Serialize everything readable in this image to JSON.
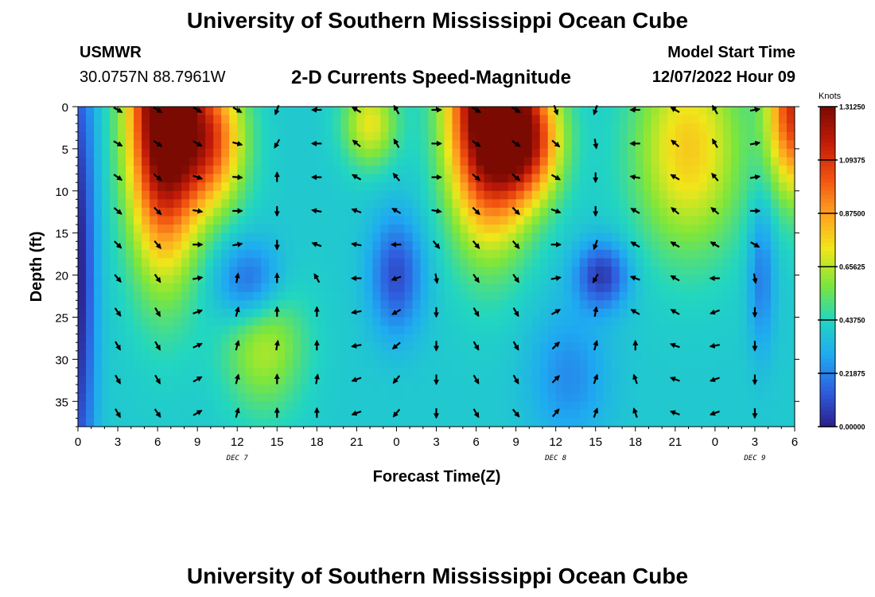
{
  "page": {
    "main_title": "University of Southern Mississippi Ocean Cube",
    "station_id": "USMWR",
    "coordinates": "30.0757N  88.7961W",
    "chart_subtitle": "2-D Currents Speed-Magnitude",
    "model_start_label": "Model Start Time",
    "model_start_value": "12/07/2022 Hour 09",
    "second_panel_title": "University of Southern Mississippi Ocean Cube"
  },
  "chart_data": {
    "type": "heatmap",
    "title": "2-D Currents Speed-Magnitude",
    "xlabel": "Forecast Time(Z)",
    "ylabel": "Depth (ft)",
    "x_range_hours": [
      0,
      54
    ],
    "x_ticks": [
      {
        "h": 0,
        "label": "0"
      },
      {
        "h": 3,
        "label": "3"
      },
      {
        "h": 6,
        "label": "6"
      },
      {
        "h": 9,
        "label": "9"
      },
      {
        "h": 12,
        "label": "12"
      },
      {
        "h": 15,
        "label": "15"
      },
      {
        "h": 18,
        "label": "18"
      },
      {
        "h": 21,
        "label": "21"
      },
      {
        "h": 24,
        "label": "0"
      },
      {
        "h": 27,
        "label": "3"
      },
      {
        "h": 30,
        "label": "6"
      },
      {
        "h": 33,
        "label": "9"
      },
      {
        "h": 36,
        "label": "12"
      },
      {
        "h": 39,
        "label": "15"
      },
      {
        "h": 42,
        "label": "18"
      },
      {
        "h": 45,
        "label": "21"
      },
      {
        "h": 48,
        "label": "0"
      },
      {
        "h": 51,
        "label": "3"
      },
      {
        "h": 54,
        "label": "6"
      }
    ],
    "date_labels": [
      {
        "h": 12,
        "label": "DEC 7"
      },
      {
        "h": 36,
        "label": "DEC 8"
      },
      {
        "h": 51,
        "label": "DEC 9"
      }
    ],
    "y_range_ft": [
      0,
      38
    ],
    "y_ticks": [
      0,
      5,
      10,
      15,
      20,
      25,
      30,
      35
    ],
    "colorbar": {
      "unit_label": "Knots",
      "range": [
        0,
        1.3125
      ],
      "tick_labels": [
        "1.31250",
        "1.09375",
        "0.87500",
        "0.65625",
        "0.43750",
        "0.21875",
        "0.00000"
      ],
      "colors": [
        "#2a1f8a",
        "#2f5fe0",
        "#1fa9f2",
        "#22d6c0",
        "#7fe63a",
        "#f0e61a",
        "#ffa020",
        "#f05010",
        "#c01a08",
        "#7a0a02"
      ]
    },
    "arrow_times_hours": [
      3,
      6,
      9,
      12,
      15,
      18,
      21,
      24,
      27,
      30,
      33,
      36,
      39,
      42,
      45,
      48,
      51
    ],
    "arrow_depths_ft": [
      0,
      4,
      8,
      12,
      16,
      20,
      24,
      28,
      32,
      36
    ],
    "arrow_direction_deg_by_time": [
      [
        120,
        120,
        125,
        130,
        135,
        140,
        145,
        150,
        150,
        150
      ],
      [
        120,
        125,
        130,
        135,
        140,
        145,
        150,
        150,
        150,
        145
      ],
      [
        120,
        120,
        110,
        100,
        90,
        80,
        70,
        65,
        60,
        60
      ],
      [
        120,
        105,
        95,
        90,
        80,
        10,
        15,
        15,
        15,
        15
      ],
      [
        200,
        210,
        0,
        180,
        180,
        0,
        0,
        10,
        0,
        0
      ],
      [
        270,
        270,
        270,
        280,
        290,
        330,
        0,
        0,
        10,
        0
      ],
      [
        300,
        310,
        300,
        290,
        280,
        270,
        260,
        260,
        250,
        250
      ],
      [
        330,
        330,
        320,
        300,
        270,
        250,
        240,
        230,
        220,
        220
      ],
      [
        90,
        90,
        90,
        100,
        140,
        170,
        180,
        180,
        180,
        180
      ],
      [
        120,
        125,
        130,
        135,
        140,
        145,
        150,
        150,
        150,
        150
      ],
      [
        120,
        125,
        130,
        135,
        140,
        145,
        150,
        150,
        150,
        140
      ],
      [
        160,
        130,
        120,
        110,
        90,
        80,
        60,
        45,
        45,
        40
      ],
      [
        200,
        170,
        180,
        180,
        200,
        210,
        10,
        15,
        20,
        20
      ],
      [
        270,
        270,
        280,
        300,
        300,
        290,
        300,
        0,
        340,
        340
      ],
      [
        300,
        310,
        300,
        310,
        300,
        300,
        300,
        290,
        290,
        290
      ],
      [
        330,
        330,
        320,
        310,
        300,
        270,
        250,
        260,
        250,
        250
      ],
      [
        80,
        80,
        80,
        90,
        120,
        170,
        180,
        180,
        180,
        180
      ]
    ]
  }
}
